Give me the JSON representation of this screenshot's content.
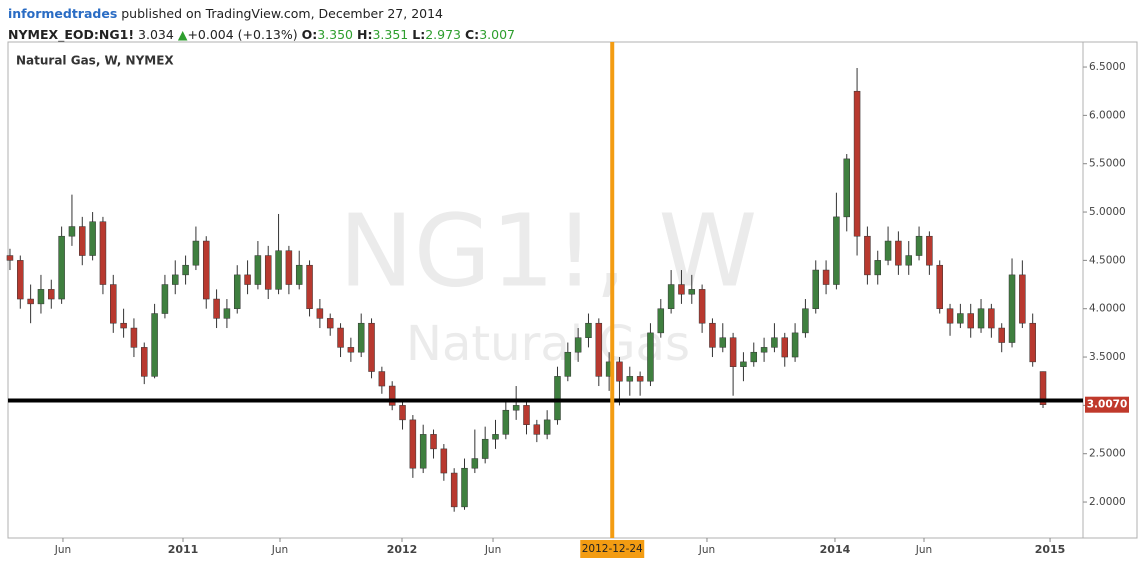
{
  "header": {
    "author": "informedtrades",
    "published": "published on TradingView.com, December 27, 2014",
    "symbol": "NYMEX_EOD:NG1!",
    "last": "3.034",
    "change": "+0.004 (+0.13%)",
    "open_label": "O:",
    "open": "3.350",
    "high_label": "H:",
    "high": "3.351",
    "low_label": "L:",
    "low": "2.973",
    "close_label": "C:",
    "close": "3.007"
  },
  "chart_data": {
    "type": "candlestick",
    "title": "Natural Gas, W, NYMEX",
    "watermark": "NG1!, W",
    "watermark_subtitle": "Natural Gas",
    "up_color": "#3f7f3f",
    "down_color": "#b8392f",
    "categories": [
      null,
      null,
      null,
      null,
      null,
      null,
      null,
      null,
      null,
      null,
      null,
      null,
      null,
      null,
      null,
      null,
      null,
      null,
      null,
      null,
      null,
      null,
      null,
      null,
      null,
      null,
      null,
      null,
      null,
      null,
      null,
      null,
      null,
      null,
      null,
      null,
      null,
      null,
      null,
      null,
      null,
      null,
      null,
      null,
      null,
      null,
      null,
      null,
      null,
      null,
      null,
      null,
      null,
      null,
      null,
      null,
      null,
      null,
      null,
      null,
      null,
      null,
      null,
      null,
      null,
      null,
      null,
      null,
      null,
      null,
      null,
      null,
      null,
      null,
      null,
      null,
      null,
      null,
      null,
      null,
      null,
      null,
      null,
      null,
      null,
      null,
      null,
      null,
      null,
      null,
      null,
      null,
      null,
      null,
      null,
      null,
      null,
      null,
      null,
      null,
      null
    ],
    "series": [
      {
        "name": "NG1!",
        "values": [
          [
            4.55,
            4.62,
            4.4,
            4.5
          ],
          [
            4.5,
            4.55,
            4.0,
            4.1
          ],
          [
            4.1,
            4.25,
            3.85,
            4.05
          ],
          [
            4.05,
            4.35,
            3.95,
            4.2
          ],
          [
            4.2,
            4.3,
            4.0,
            4.1
          ],
          [
            4.1,
            4.85,
            4.05,
            4.75
          ],
          [
            4.75,
            5.18,
            4.65,
            4.85
          ],
          [
            4.85,
            4.95,
            4.45,
            4.55
          ],
          [
            4.55,
            5.0,
            4.5,
            4.9
          ],
          [
            4.9,
            4.95,
            4.15,
            4.25
          ],
          [
            4.25,
            4.35,
            3.75,
            3.85
          ],
          [
            3.85,
            4.0,
            3.7,
            3.8
          ],
          [
            3.8,
            3.9,
            3.5,
            3.6
          ],
          [
            3.6,
            3.65,
            3.22,
            3.3
          ],
          [
            3.3,
            4.05,
            3.28,
            3.95
          ],
          [
            3.95,
            4.35,
            3.9,
            4.25
          ],
          [
            4.25,
            4.5,
            4.15,
            4.35
          ],
          [
            4.35,
            4.55,
            4.25,
            4.45
          ],
          [
            4.45,
            4.85,
            4.4,
            4.7
          ],
          [
            4.7,
            4.75,
            4.0,
            4.1
          ],
          [
            4.1,
            4.2,
            3.8,
            3.9
          ],
          [
            3.9,
            4.1,
            3.8,
            4.0
          ],
          [
            4.0,
            4.45,
            3.95,
            4.35
          ],
          [
            4.35,
            4.5,
            4.15,
            4.25
          ],
          [
            4.25,
            4.7,
            4.2,
            4.55
          ],
          [
            4.55,
            4.65,
            4.1,
            4.2
          ],
          [
            4.2,
            4.98,
            4.15,
            4.6
          ],
          [
            4.6,
            4.65,
            4.15,
            4.25
          ],
          [
            4.25,
            4.6,
            4.2,
            4.45
          ],
          [
            4.45,
            4.5,
            3.92,
            4.0
          ],
          [
            4.0,
            4.1,
            3.8,
            3.9
          ],
          [
            3.9,
            3.95,
            3.72,
            3.8
          ],
          [
            3.8,
            3.85,
            3.5,
            3.6
          ],
          [
            3.6,
            3.7,
            3.45,
            3.55
          ],
          [
            3.55,
            3.95,
            3.5,
            3.85
          ],
          [
            3.85,
            3.9,
            3.28,
            3.35
          ],
          [
            3.35,
            3.4,
            3.12,
            3.2
          ],
          [
            3.2,
            3.25,
            2.95,
            3.0
          ],
          [
            3.0,
            3.05,
            2.75,
            2.85
          ],
          [
            2.85,
            2.9,
            2.25,
            2.35
          ],
          [
            2.35,
            2.8,
            2.3,
            2.7
          ],
          [
            2.7,
            2.75,
            2.45,
            2.55
          ],
          [
            2.55,
            2.6,
            2.22,
            2.3
          ],
          [
            2.3,
            2.35,
            1.9,
            1.95
          ],
          [
            1.95,
            2.45,
            1.92,
            2.35
          ],
          [
            2.35,
            2.75,
            2.3,
            2.45
          ],
          [
            2.45,
            2.78,
            2.4,
            2.65
          ],
          [
            2.65,
            2.85,
            2.55,
            2.7
          ],
          [
            2.7,
            3.05,
            2.65,
            2.95
          ],
          [
            2.95,
            3.2,
            2.85,
            3.0
          ],
          [
            3.0,
            3.05,
            2.7,
            2.8
          ],
          [
            2.8,
            2.85,
            2.62,
            2.7
          ],
          [
            2.7,
            2.95,
            2.65,
            2.85
          ],
          [
            2.85,
            3.4,
            2.8,
            3.3
          ],
          [
            3.3,
            3.65,
            3.25,
            3.55
          ],
          [
            3.55,
            3.8,
            3.45,
            3.7
          ],
          [
            3.7,
            3.95,
            3.6,
            3.85
          ],
          [
            3.85,
            3.9,
            3.2,
            3.3
          ],
          [
            3.3,
            3.55,
            3.15,
            3.45
          ],
          [
            3.45,
            3.5,
            3.0,
            3.25
          ],
          [
            3.25,
            3.4,
            3.1,
            3.3
          ],
          [
            3.3,
            3.35,
            3.1,
            3.25
          ],
          [
            3.25,
            3.85,
            3.2,
            3.75
          ],
          [
            3.75,
            4.1,
            3.7,
            4.0
          ],
          [
            4.0,
            4.4,
            3.95,
            4.25
          ],
          [
            4.25,
            4.4,
            4.05,
            4.15
          ],
          [
            4.15,
            4.35,
            4.05,
            4.2
          ],
          [
            4.2,
            4.25,
            3.75,
            3.85
          ],
          [
            3.85,
            3.9,
            3.5,
            3.6
          ],
          [
            3.6,
            3.85,
            3.55,
            3.7
          ],
          [
            3.7,
            3.75,
            3.1,
            3.4
          ],
          [
            3.4,
            3.55,
            3.25,
            3.45
          ],
          [
            3.45,
            3.65,
            3.4,
            3.55
          ],
          [
            3.55,
            3.7,
            3.45,
            3.6
          ],
          [
            3.6,
            3.85,
            3.55,
            3.7
          ],
          [
            3.7,
            3.75,
            3.4,
            3.5
          ],
          [
            3.5,
            3.85,
            3.45,
            3.75
          ],
          [
            3.75,
            4.1,
            3.7,
            4.0
          ],
          [
            4.0,
            4.5,
            3.95,
            4.4
          ],
          [
            4.4,
            4.5,
            4.15,
            4.25
          ],
          [
            4.25,
            5.2,
            4.2,
            4.95
          ],
          [
            4.95,
            5.6,
            4.8,
            5.55
          ],
          [
            6.25,
            6.49,
            4.55,
            4.75
          ],
          [
            4.75,
            4.85,
            4.25,
            4.35
          ],
          [
            4.35,
            4.6,
            4.25,
            4.5
          ],
          [
            4.5,
            4.85,
            4.45,
            4.7
          ],
          [
            4.7,
            4.8,
            4.35,
            4.45
          ],
          [
            4.45,
            4.7,
            4.35,
            4.55
          ],
          [
            4.55,
            4.85,
            4.5,
            4.75
          ],
          [
            4.75,
            4.8,
            4.35,
            4.45
          ],
          [
            4.45,
            4.5,
            3.95,
            4.0
          ],
          [
            4.0,
            4.05,
            3.72,
            3.85
          ],
          [
            3.85,
            4.05,
            3.8,
            3.95
          ],
          [
            3.95,
            4.05,
            3.7,
            3.8
          ],
          [
            3.8,
            4.1,
            3.75,
            4.0
          ],
          [
            4.0,
            4.05,
            3.7,
            3.8
          ],
          [
            3.8,
            3.85,
            3.55,
            3.65
          ],
          [
            3.65,
            4.52,
            3.6,
            4.35
          ],
          [
            4.35,
            4.5,
            3.8,
            3.85
          ],
          [
            3.85,
            3.95,
            3.4,
            3.45
          ],
          [
            3.35,
            3.351,
            2.973,
            3.007
          ]
        ]
      }
    ],
    "xlim": [
      -0.19,
      103.87
    ],
    "xticks": [
      {
        "value": 5.13,
        "label": "Jun"
      },
      {
        "value": 16.75,
        "label": "2011"
      },
      {
        "value": 26.14,
        "label": "Jun"
      },
      {
        "value": 37.95,
        "label": "2012"
      },
      {
        "value": 46.76,
        "label": "Jun"
      },
      {
        "value": 67.47,
        "label": "Jun"
      },
      {
        "value": 79.86,
        "label": "2014"
      },
      {
        "value": 88.48,
        "label": "Jun"
      },
      {
        "value": 100.68,
        "label": "2015"
      }
    ],
    "ylim": [
      1.628,
      6.759
    ],
    "yticks": [
      {
        "value": 2,
        "label": "2.0000"
      },
      {
        "value": 2.5,
        "label": "2.5000"
      },
      {
        "value": 3,
        "label": "3.0000"
      },
      {
        "value": 3.5,
        "label": "3.5000"
      },
      {
        "value": 4,
        "label": "4.0000"
      },
      {
        "value": 4.5,
        "label": "4.5000"
      },
      {
        "value": 5,
        "label": "5.0000"
      },
      {
        "value": 5.5,
        "label": "5.5000"
      },
      {
        "value": 6,
        "label": "6.0000"
      },
      {
        "value": 6.5,
        "label": "6.5000"
      }
    ],
    "crosshair": {
      "value": 58.3,
      "label": "2012-12-24",
      "color": "#f39c12"
    },
    "hline": {
      "value": 3.05,
      "color": "#000000"
    },
    "last_price": {
      "value": 3.007,
      "label": "3.0070",
      "color": "#c0392b"
    }
  }
}
